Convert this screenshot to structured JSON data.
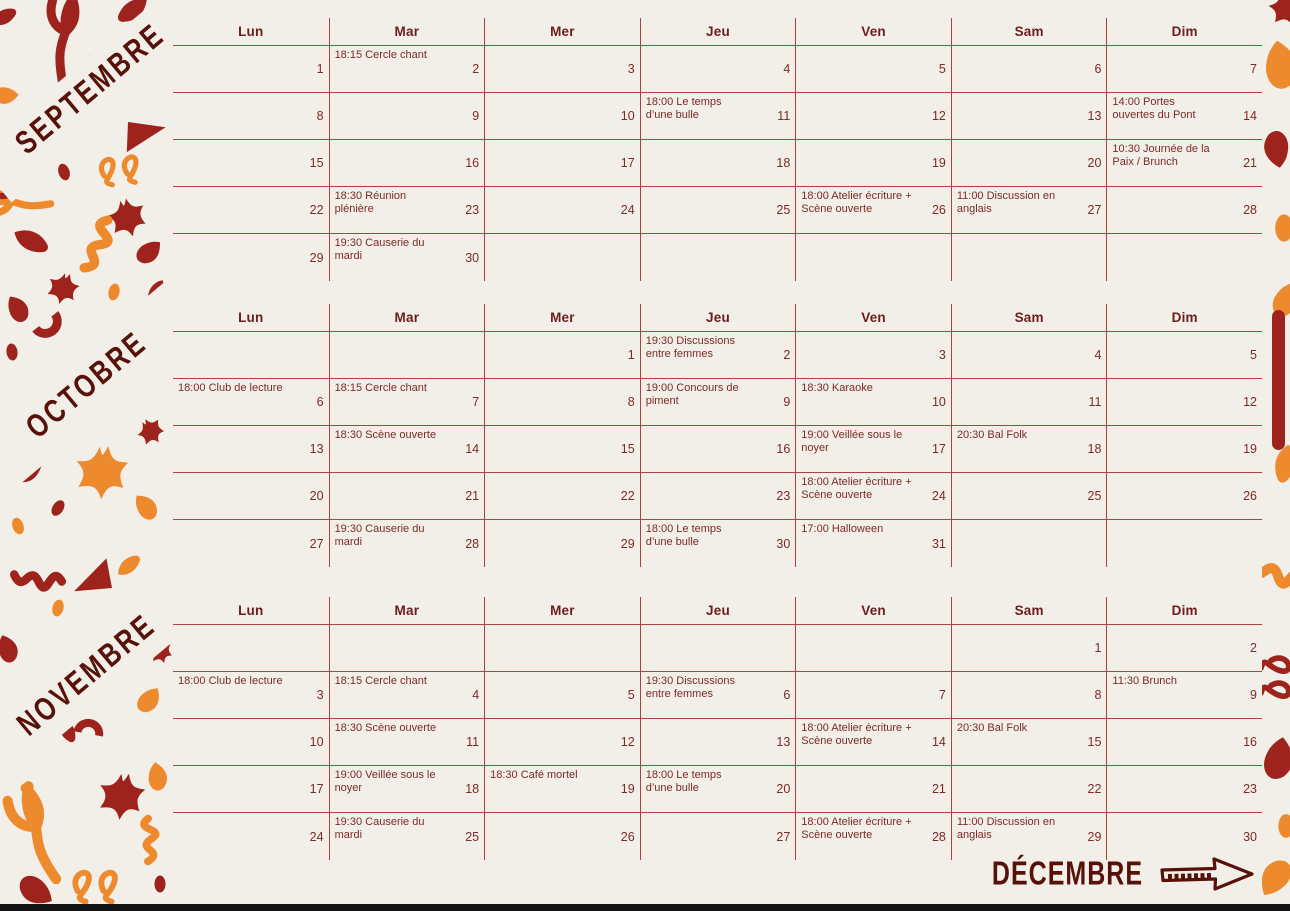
{
  "theme": {
    "background": "#f2efe8",
    "grid_line": "#a8433e",
    "header_text": "#6b1d1d",
    "day_text": "#7c2a26",
    "pattern_dark_red": "#9e231c",
    "pattern_orange": "#ee8a2e",
    "month_label_text": "#571109",
    "bottom_bar": "#141414"
  },
  "sidebar": {
    "month_labels": [
      "SEPTEMBRE",
      "OCTOBRE",
      "NOVEMBRE"
    ]
  },
  "december": {
    "label": "DÉCEMBRE",
    "arrow_icon": "arrow-right"
  },
  "months": [
    {
      "name": "SEPTEMBRE",
      "day_headers": [
        "Lun",
        "Mar",
        "Mer",
        "Jeu",
        "Ven",
        "Sam",
        "Dim"
      ],
      "weeks": [
        [
          {
            "day": "1"
          },
          {
            "day": "2",
            "event": "18:15 Cercle chant"
          },
          {
            "day": "3"
          },
          {
            "day": "4"
          },
          {
            "day": "5"
          },
          {
            "day": "6"
          },
          {
            "day": "7"
          }
        ],
        [
          {
            "day": "8"
          },
          {
            "day": "9"
          },
          {
            "day": "10"
          },
          {
            "day": "11",
            "event": "18:00 Le temps\nd’une bulle"
          },
          {
            "day": "12"
          },
          {
            "day": "13"
          },
          {
            "day": "14",
            "event": "14:00 Portes\nouvertes du Pont"
          }
        ],
        [
          {
            "day": "15"
          },
          {
            "day": "16"
          },
          {
            "day": "17"
          },
          {
            "day": "18"
          },
          {
            "day": "19"
          },
          {
            "day": "20"
          },
          {
            "day": "21",
            "event": "10:30 Journée de la\nPaix / Brunch"
          }
        ],
        [
          {
            "day": "22"
          },
          {
            "day": "23",
            "event": "18:30 Réunion\nplénière"
          },
          {
            "day": "24"
          },
          {
            "day": "25"
          },
          {
            "day": "26",
            "event": "18:00 Atelier écriture +\nScène ouverte"
          },
          {
            "day": "27",
            "event": "11:00 Discussion en\nanglais"
          },
          {
            "day": "28"
          }
        ],
        [
          {
            "day": "29"
          },
          {
            "day": "30",
            "event": "19:30 Causerie du\nmardi"
          },
          {},
          {},
          {},
          {},
          {}
        ]
      ]
    },
    {
      "name": "OCTOBRE",
      "day_headers": [
        "Lun",
        "Mar",
        "Mer",
        "Jeu",
        "Ven",
        "Sam",
        "Dim"
      ],
      "weeks": [
        [
          {},
          {},
          {
            "day": "1"
          },
          {
            "day": "2",
            "event": "19:30 Discussions\nentre femmes"
          },
          {
            "day": "3"
          },
          {
            "day": "4"
          },
          {
            "day": "5"
          }
        ],
        [
          {
            "day": "6",
            "event": "18:00 Club de lecture"
          },
          {
            "day": "7",
            "event": "18:15 Cercle chant"
          },
          {
            "day": "8"
          },
          {
            "day": "9",
            "event": "19:00 Concours de\npiment"
          },
          {
            "day": "10",
            "event": "18:30 Karaoke"
          },
          {
            "day": "11"
          },
          {
            "day": "12"
          }
        ],
        [
          {
            "day": "13"
          },
          {
            "day": "14",
            "event": "18:30 Scène ouverte"
          },
          {
            "day": "15"
          },
          {
            "day": "16"
          },
          {
            "day": "17",
            "event": "19:00 Veillée sous le\nnoyer"
          },
          {
            "day": "18",
            "event": "20:30 Bal Folk"
          },
          {
            "day": "19"
          }
        ],
        [
          {
            "day": "20"
          },
          {
            "day": "21"
          },
          {
            "day": "22"
          },
          {
            "day": "23"
          },
          {
            "day": "24",
            "event": "18:00 Atelier écriture +\nScène ouverte"
          },
          {
            "day": "25"
          },
          {
            "day": "26"
          }
        ],
        [
          {
            "day": "27"
          },
          {
            "day": "28",
            "event": "19:30 Causerie du\nmardi"
          },
          {
            "day": "29"
          },
          {
            "day": "30",
            "event": "18:00 Le temps\nd’une bulle"
          },
          {
            "day": "31",
            "event": "17:00 Halloween"
          },
          {},
          {}
        ]
      ]
    },
    {
      "name": "NOVEMBRE",
      "day_headers": [
        "Lun",
        "Mar",
        "Mer",
        "Jeu",
        "Ven",
        "Sam",
        "Dim"
      ],
      "weeks": [
        [
          {},
          {},
          {},
          {},
          {},
          {
            "day": "1"
          },
          {
            "day": "2"
          }
        ],
        [
          {
            "day": "3",
            "event": "18:00 Club de lecture"
          },
          {
            "day": "4",
            "event": "18:15 Cercle chant"
          },
          {
            "day": "5"
          },
          {
            "day": "6",
            "event": "19:30 Discussions\nentre femmes"
          },
          {
            "day": "7"
          },
          {
            "day": "8"
          },
          {
            "day": "9",
            "event": "11:30 Brunch"
          }
        ],
        [
          {
            "day": "10"
          },
          {
            "day": "11",
            "event": "18:30 Scène ouverte"
          },
          {
            "day": "12"
          },
          {
            "day": "13"
          },
          {
            "day": "14",
            "event": "18:00 Atelier écriture +\nScène ouverte"
          },
          {
            "day": "15",
            "event": "20:30 Bal Folk"
          },
          {
            "day": "16"
          }
        ],
        [
          {
            "day": "17"
          },
          {
            "day": "18",
            "event": "19:00 Veillée sous le\nnoyer"
          },
          {
            "day": "19",
            "event": "18:30 Café mortel"
          },
          {
            "day": "20",
            "event": "18:00 Le temps\nd’une bulle"
          },
          {
            "day": "21"
          },
          {
            "day": "22"
          },
          {
            "day": "23"
          }
        ],
        [
          {
            "day": "24"
          },
          {
            "day": "25",
            "event": "19:30 Causerie du\nmardi"
          },
          {
            "day": "26"
          },
          {
            "day": "27"
          },
          {
            "day": "28",
            "event": "18:00 Atelier écriture +\nScène ouverte"
          },
          {
            "day": "29",
            "event": "11:00 Discussion en\nanglais"
          },
          {
            "day": "30"
          }
        ]
      ]
    }
  ]
}
